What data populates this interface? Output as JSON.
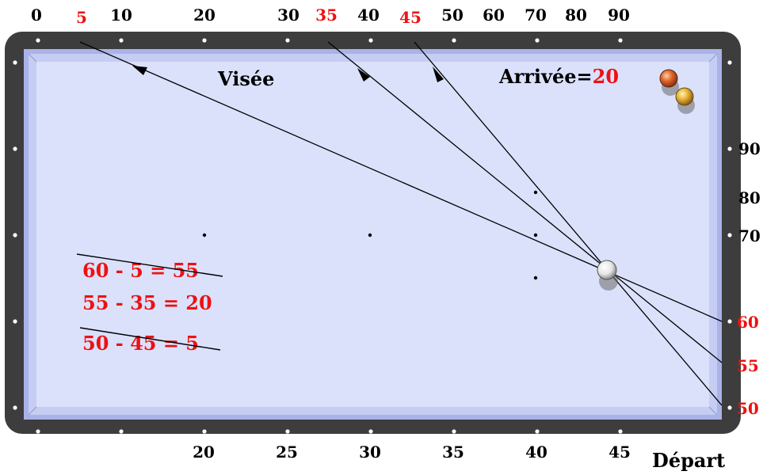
{
  "colors": {
    "frame": "#3d3d3d",
    "rail": "#a9b3e8",
    "cushion_light": "#c6cdf2",
    "cloth": "#dbe1fb",
    "accent_red": "#ee1111",
    "ink": "#000000"
  },
  "top_scale": {
    "black": [
      "0",
      "10",
      "20",
      "30",
      "40",
      "50",
      "60",
      "70",
      "80",
      "90"
    ],
    "red": [
      "5",
      "35",
      "45"
    ]
  },
  "right_scale": {
    "black": [
      "90",
      "80",
      "70"
    ],
    "red": [
      "60",
      "55",
      "50"
    ]
  },
  "bottom_scale": [
    "20",
    "25",
    "30",
    "35",
    "40",
    "45"
  ],
  "labels": {
    "visee": "Visée",
    "arrivee_prefix": "Arrivée",
    "arrivee_eq": "=",
    "arrivee_value": "20",
    "depart": "Départ"
  },
  "calculations": [
    {
      "text": "60 - 5 = 55",
      "struck": true
    },
    {
      "text": "55 - 35 = 20",
      "struck": false
    },
    {
      "text": "50 - 45 = 5",
      "struck": true
    }
  ],
  "balls": [
    {
      "name": "cue-ball",
      "color": "white"
    },
    {
      "name": "object-ball-red",
      "color": "red"
    },
    {
      "name": "object-ball-yellow",
      "color": "yellow"
    }
  ]
}
